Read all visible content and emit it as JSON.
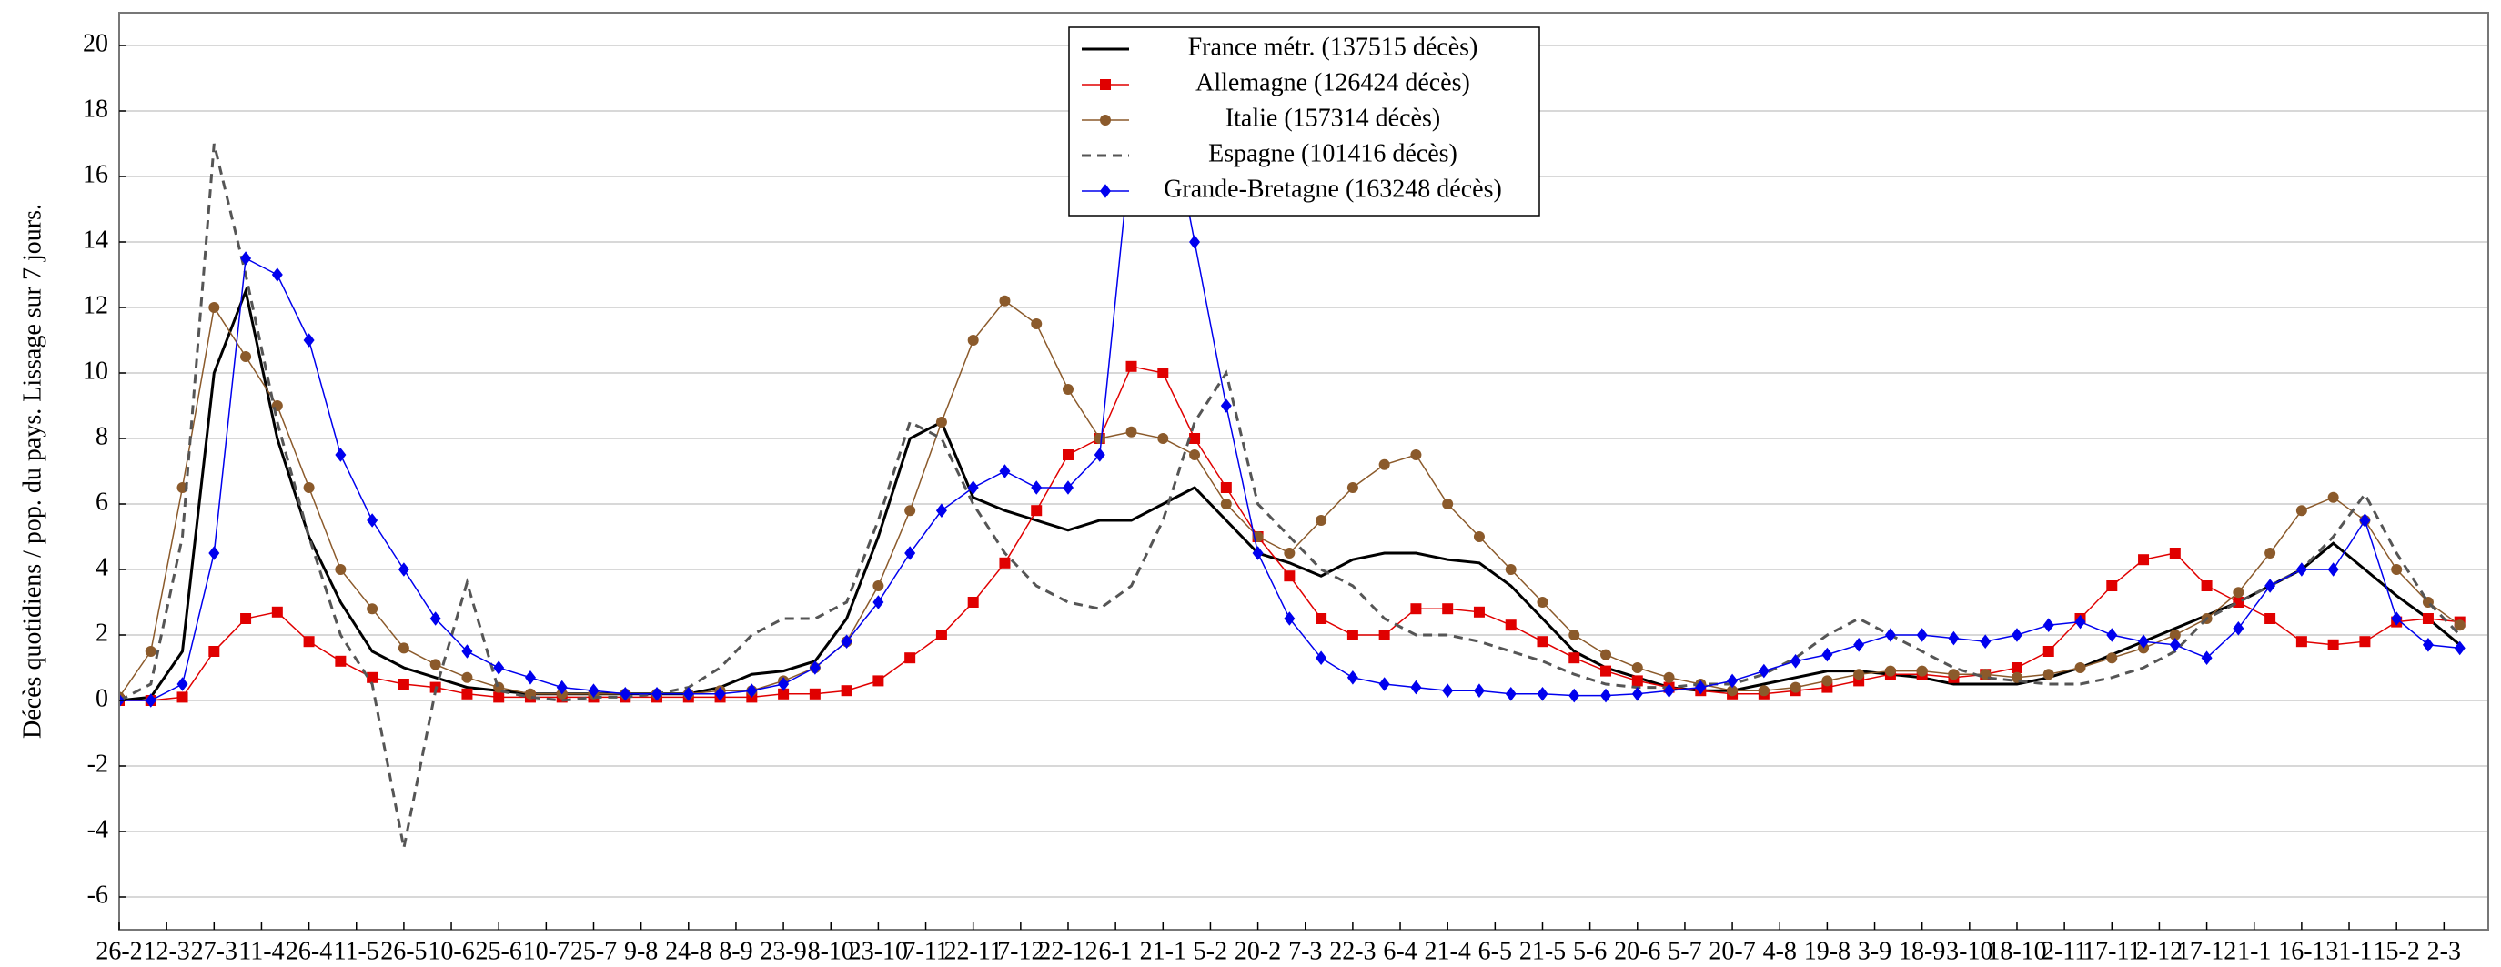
{
  "chart_data": {
    "type": "line",
    "y_label": "Décès quotidiens / pop. du pays. Lissage sur 7 jours.",
    "x": [
      0,
      10,
      20,
      30,
      40,
      50,
      60,
      70,
      80,
      90,
      100,
      110,
      120,
      130,
      140,
      150,
      160,
      170,
      180,
      190,
      200,
      210,
      220,
      230,
      240,
      250,
      260,
      270,
      280,
      290,
      300,
      310,
      320,
      330,
      340,
      350,
      360,
      370,
      380,
      390,
      400,
      410,
      420,
      430,
      440,
      450,
      460,
      470,
      480,
      490,
      500,
      510,
      520,
      530,
      540,
      550,
      560,
      570,
      580,
      590,
      600,
      610,
      620,
      630,
      640,
      650,
      660,
      670,
      680,
      690,
      700,
      710,
      720,
      730,
      740
    ],
    "xlim": [
      0,
      749
    ],
    "xticks": [
      {
        "value": 0,
        "label": "26-2"
      },
      {
        "value": 15,
        "label": "12-3"
      },
      {
        "value": 30,
        "label": "27-3"
      },
      {
        "value": 45,
        "label": "11-4"
      },
      {
        "value": 60,
        "label": "26-4"
      },
      {
        "value": 75,
        "label": "11-5"
      },
      {
        "value": 90,
        "label": "26-5"
      },
      {
        "value": 105,
        "label": "10-6"
      },
      {
        "value": 120,
        "label": "25-6"
      },
      {
        "value": 135,
        "label": "10-7"
      },
      {
        "value": 150,
        "label": "25-7"
      },
      {
        "value": 165,
        "label": "9-8"
      },
      {
        "value": 180,
        "label": "24-8"
      },
      {
        "value": 195,
        "label": "8-9"
      },
      {
        "value": 210,
        "label": "23-9"
      },
      {
        "value": 225,
        "label": "8-10"
      },
      {
        "value": 240,
        "label": "23-10"
      },
      {
        "value": 255,
        "label": "7-11"
      },
      {
        "value": 270,
        "label": "22-11"
      },
      {
        "value": 285,
        "label": "7-12"
      },
      {
        "value": 300,
        "label": "22-12"
      },
      {
        "value": 315,
        "label": "6-1"
      },
      {
        "value": 330,
        "label": "21-1"
      },
      {
        "value": 345,
        "label": "5-2"
      },
      {
        "value": 360,
        "label": "20-2"
      },
      {
        "value": 375,
        "label": "7-3"
      },
      {
        "value": 390,
        "label": "22-3"
      },
      {
        "value": 405,
        "label": "6-4"
      },
      {
        "value": 420,
        "label": "21-4"
      },
      {
        "value": 435,
        "label": "6-5"
      },
      {
        "value": 450,
        "label": "21-5"
      },
      {
        "value": 465,
        "label": "5-6"
      },
      {
        "value": 480,
        "label": "20-6"
      },
      {
        "value": 495,
        "label": "5-7"
      },
      {
        "value": 510,
        "label": "20-7"
      },
      {
        "value": 525,
        "label": "4-8"
      },
      {
        "value": 540,
        "label": "19-8"
      },
      {
        "value": 555,
        "label": "3-9"
      },
      {
        "value": 570,
        "label": "18-9"
      },
      {
        "value": 585,
        "label": "3-10"
      },
      {
        "value": 600,
        "label": "18-10"
      },
      {
        "value": 615,
        "label": "2-11"
      },
      {
        "value": 630,
        "label": "17-11"
      },
      {
        "value": 645,
        "label": "2-12"
      },
      {
        "value": 660,
        "label": "17-12"
      },
      {
        "value": 675,
        "label": "1-1"
      },
      {
        "value": 690,
        "label": "16-1"
      },
      {
        "value": 705,
        "label": "31-1"
      },
      {
        "value": 720,
        "label": "15-2"
      },
      {
        "value": 735,
        "label": "2-3"
      }
    ],
    "ylim": [
      -7,
      21
    ],
    "yticks": [
      -6,
      -4,
      -2,
      0,
      2,
      4,
      6,
      8,
      10,
      12,
      14,
      16,
      18,
      20
    ],
    "grid": true,
    "legend": "top",
    "series": [
      {
        "name": "France métr. (137515 décès)",
        "color": "#000000",
        "marker": "none",
        "dash": "solid",
        "values": [
          0,
          0.1,
          1.5,
          10,
          12.5,
          8,
          5,
          3,
          1.5,
          1,
          0.7,
          0.4,
          0.3,
          0.2,
          0.2,
          0.2,
          0.2,
          0.2,
          0.2,
          0.4,
          0.8,
          0.9,
          1.2,
          2.5,
          5,
          8,
          8.5,
          6.2,
          5.8,
          5.5,
          5.2,
          5.5,
          5.5,
          6,
          6.5,
          5.5,
          4.5,
          4.2,
          3.8,
          4.3,
          4.5,
          4.5,
          4.3,
          4.2,
          3.5,
          2.5,
          1.5,
          1,
          0.7,
          0.4,
          0.3,
          0.3,
          0.5,
          0.7,
          0.9,
          0.9,
          0.8,
          0.7,
          0.5,
          0.5,
          0.5,
          0.7,
          1,
          1.4,
          1.8,
          2.2,
          2.6,
          3,
          3.5,
          4,
          4.8,
          4,
          3.2,
          2.5,
          1.7
        ]
      },
      {
        "name": "Allemagne (126424 décès)",
        "color": "#e00000",
        "marker": "square",
        "dash": "solid",
        "values": [
          0,
          0,
          0.1,
          1.5,
          2.5,
          2.7,
          1.8,
          1.2,
          0.7,
          0.5,
          0.4,
          0.2,
          0.1,
          0.1,
          0.1,
          0.1,
          0.1,
          0.1,
          0.1,
          0.1,
          0.1,
          0.2,
          0.2,
          0.3,
          0.6,
          1.3,
          2,
          3,
          4.2,
          5.8,
          7.5,
          8,
          10.2,
          10,
          8,
          6.5,
          5,
          3.8,
          2.5,
          2,
          2,
          2.8,
          2.8,
          2.7,
          2.3,
          1.8,
          1.3,
          0.9,
          0.6,
          0.4,
          0.3,
          0.2,
          0.2,
          0.3,
          0.4,
          0.6,
          0.8,
          0.8,
          0.7,
          0.8,
          1,
          1.5,
          2.5,
          3.5,
          4.3,
          4.5,
          3.5,
          3,
          2.5,
          1.8,
          1.7,
          1.8,
          2.4,
          2.5,
          2.4
        ]
      },
      {
        "name": "Italie (157314 décès)",
        "color": "#8b5a2b",
        "marker": "circle",
        "dash": "solid",
        "values": [
          0.1,
          1.5,
          6.5,
          12,
          10.5,
          9,
          6.5,
          4,
          2.8,
          1.6,
          1.1,
          0.7,
          0.4,
          0.2,
          0.2,
          0.2,
          0.2,
          0.2,
          0.2,
          0.3,
          0.3,
          0.6,
          1,
          1.8,
          3.5,
          5.8,
          8.5,
          11,
          12.2,
          11.5,
          9.5,
          8,
          8.2,
          8,
          7.5,
          6,
          5,
          4.5,
          5.5,
          6.5,
          7.2,
          7.5,
          6,
          5,
          4,
          3,
          2,
          1.4,
          1,
          0.7,
          0.5,
          0.3,
          0.3,
          0.4,
          0.6,
          0.8,
          0.9,
          0.9,
          0.8,
          0.8,
          0.7,
          0.8,
          1,
          1.3,
          1.6,
          2,
          2.5,
          3.3,
          4.5,
          5.8,
          6.2,
          5.5,
          4,
          3,
          2.3
        ]
      },
      {
        "name": "Espagne (101416 décès)",
        "color": "#555555",
        "marker": "none",
        "dash": "dashed",
        "values": [
          0,
          0.5,
          5,
          17,
          13,
          8.5,
          5,
          2,
          0.5,
          -4.5,
          0.3,
          3.6,
          0.3,
          0.1,
          0,
          0.1,
          0.1,
          0.2,
          0.4,
          1,
          2,
          2.5,
          2.5,
          3,
          5.5,
          8.5,
          8,
          6,
          4.5,
          3.5,
          3,
          2.8,
          3.5,
          5.5,
          8.5,
          10,
          6,
          5,
          4,
          3.5,
          2.5,
          2,
          2,
          1.8,
          1.5,
          1.2,
          0.8,
          0.5,
          0.4,
          0.4,
          0.5,
          0.5,
          0.8,
          1.3,
          2,
          2.5,
          2,
          1.5,
          1,
          0.7,
          0.6,
          0.5,
          0.5,
          0.7,
          1,
          1.5,
          2.5,
          3,
          3.5,
          4,
          5,
          6.3,
          4.5,
          3,
          2
        ]
      },
      {
        "name": "Grande-Bretagne (163248 décès)",
        "color": "#0000ee",
        "marker": "diamond",
        "dash": "solid",
        "values": [
          0,
          0,
          0.5,
          4.5,
          13.5,
          13,
          11,
          7.5,
          5.5,
          4,
          2.5,
          1.5,
          1,
          0.7,
          0.4,
          0.3,
          0.2,
          0.2,
          0.2,
          0.2,
          0.3,
          0.5,
          1,
          1.8,
          3,
          4.5,
          5.8,
          6.5,
          7,
          6.5,
          6.5,
          7.5,
          17,
          19,
          14,
          9,
          4.5,
          2.5,
          1.3,
          0.7,
          0.5,
          0.4,
          0.3,
          0.3,
          0.2,
          0.2,
          0.15,
          0.15,
          0.2,
          0.3,
          0.4,
          0.6,
          0.9,
          1.2,
          1.4,
          1.7,
          2,
          2,
          1.9,
          1.8,
          2,
          2.3,
          2.4,
          2,
          1.8,
          1.7,
          1.3,
          2.2,
          3.5,
          4,
          4,
          5.5,
          2.5,
          1.7,
          1.6
        ]
      }
    ]
  }
}
